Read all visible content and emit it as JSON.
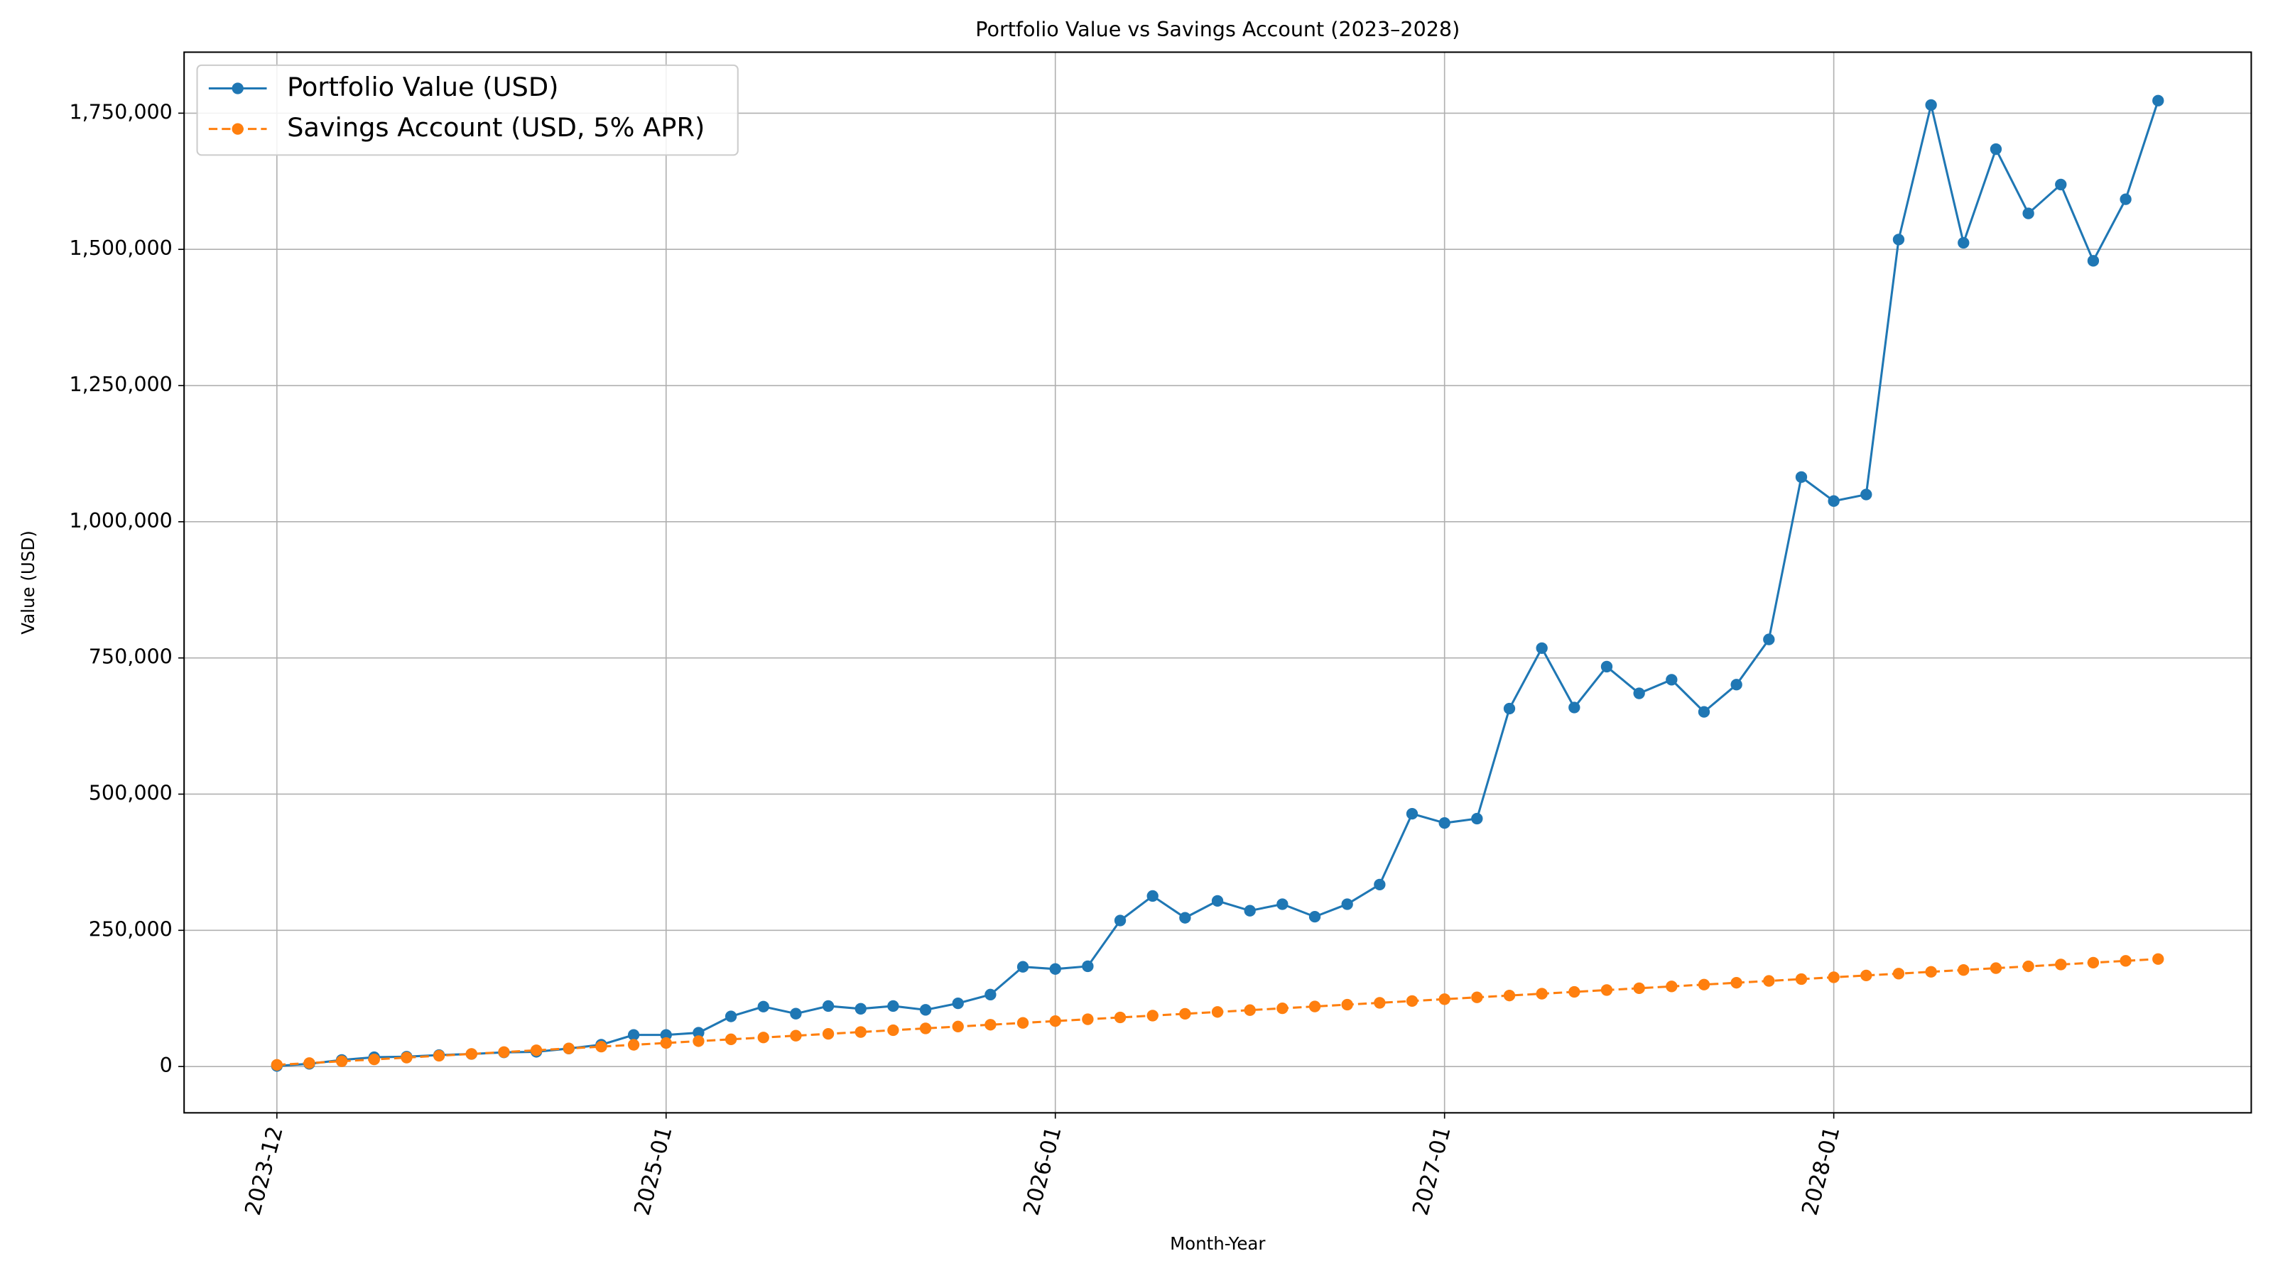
{
  "chart_data": {
    "type": "line",
    "title": "Portfolio Value vs Savings Account (2023–2028)",
    "x_label": "Month-Year",
    "y_label": "Value (USD)",
    "categories": [
      "2023-12",
      null,
      null,
      null,
      null,
      null,
      null,
      null,
      null,
      null,
      null,
      null,
      "2025-01",
      null,
      null,
      null,
      null,
      null,
      null,
      null,
      null,
      null,
      null,
      null,
      "2026-01",
      null,
      null,
      null,
      null,
      null,
      null,
      null,
      null,
      null,
      null,
      null,
      "2027-01",
      null,
      null,
      null,
      null,
      null,
      null,
      null,
      null,
      null,
      null,
      null,
      "2028-01",
      null,
      null,
      null,
      null,
      null,
      null,
      null,
      null,
      null,
      null
    ],
    "series": [
      {
        "name": "Portfolio Value (USD)",
        "color": "#1f77b4",
        "linestyle": "solid",
        "values": [
          1000,
          5000,
          12000,
          17000,
          18000,
          21000,
          23000,
          26000,
          27000,
          33000,
          40000,
          58000,
          58000,
          62000,
          92000,
          110000,
          97000,
          111000,
          106000,
          111000,
          104000,
          116000,
          132000,
          183000,
          179000,
          184000,
          268000,
          313000,
          273000,
          304000,
          286000,
          298000,
          275000,
          298000,
          334000,
          464000,
          447000,
          455000,
          657000,
          768000,
          659000,
          734000,
          685000,
          710000,
          651000,
          701000,
          784000,
          1082000,
          1038000,
          1050000,
          1518000,
          1765000,
          1512000,
          1684000,
          1566000,
          1619000,
          1479000,
          1592000,
          1773000
        ]
      },
      {
        "name": "Savings Account (USD, 5% APR)",
        "color": "#ff7f0e",
        "linestyle": "dashed",
        "values": [
          3000,
          6350,
          9700,
          13050,
          16400,
          19750,
          23100,
          26450,
          29800,
          33150,
          36500,
          39850,
          43200,
          46550,
          49900,
          53250,
          56600,
          59950,
          63300,
          66650,
          70000,
          73350,
          76700,
          80050,
          83400,
          86750,
          90100,
          93450,
          96800,
          100150,
          103500,
          106850,
          110200,
          113550,
          116900,
          120250,
          123600,
          126950,
          130300,
          133650,
          137000,
          140350,
          143700,
          147050,
          150400,
          153750,
          157100,
          160450,
          163800,
          167150,
          170500,
          173850,
          177200,
          180550,
          183900,
          187250,
          190600,
          193950,
          197300
        ]
      }
    ],
    "ylim": [
      -85000,
      1862000
    ],
    "yticks": [
      0,
      {
        "value": 250000,
        "label": "250,000"
      },
      {
        "value": 500000,
        "label": "500,000"
      },
      {
        "value": 750000,
        "label": "750,000"
      },
      {
        "value": 1000000,
        "label": "1,000,000"
      },
      {
        "value": 1250000,
        "label": "1,250,000"
      },
      {
        "value": 1500000,
        "label": "1,500,000"
      },
      {
        "value": 1750000,
        "label": "1,750,000"
      }
    ],
    "grid": true,
    "legend": "upper left"
  }
}
